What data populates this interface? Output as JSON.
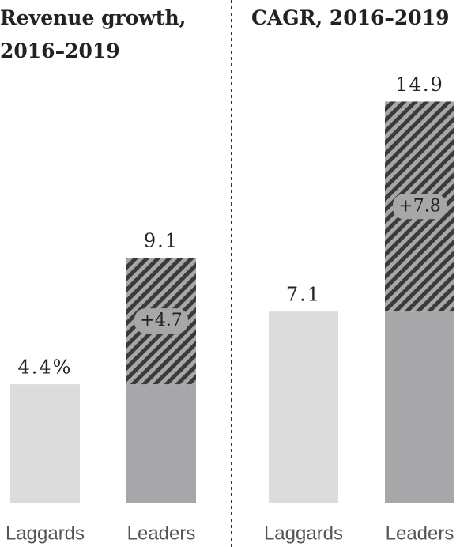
{
  "chart_data": [
    {
      "type": "bar",
      "title": "Revenue growth, 2016–2019",
      "categories": [
        "Laggards",
        "Leaders"
      ],
      "series": [
        {
          "colors": [
            "#dcdcdd",
            "#a7a7a9"
          ],
          "values": [
            4.4,
            4.4
          ]
        },
        {
          "color": "#3a3a3a",
          "hatch": true,
          "values": [
            null,
            4.7
          ],
          "value_labels": [
            null,
            "+4.7"
          ]
        }
      ],
      "totals": [
        4.4,
        9.1
      ],
      "total_labels": [
        "4.4%",
        "9.1"
      ],
      "ylim": [
        0,
        15.5
      ]
    },
    {
      "type": "bar",
      "title": "CAGR, 2016–2019",
      "categories": [
        "Laggards",
        "Leaders"
      ],
      "series": [
        {
          "colors": [
            "#dcdcdd",
            "#a7a7a9"
          ],
          "values": [
            7.1,
            7.1
          ]
        },
        {
          "color": "#3a3a3a",
          "hatch": true,
          "values": [
            null,
            7.8
          ],
          "value_labels": [
            null,
            "+7.8"
          ]
        }
      ],
      "totals": [
        7.1,
        14.9
      ],
      "total_labels": [
        "7.1",
        "14.9"
      ],
      "ylim": [
        0,
        15.5
      ]
    }
  ]
}
